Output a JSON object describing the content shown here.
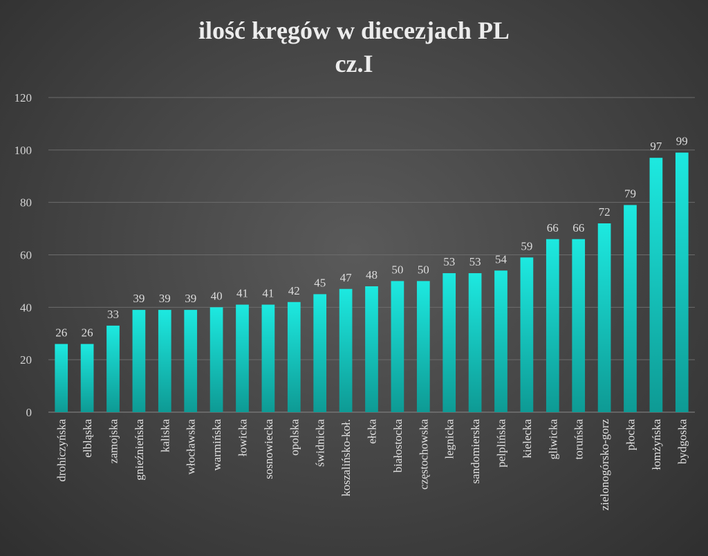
{
  "chart_data": {
    "type": "bar",
    "title_line1": "ilość kręgów w diecezjach PL",
    "title_line2": "cz.I",
    "xlabel": "",
    "ylabel": "",
    "ylim": [
      0,
      120
    ],
    "yticks": [
      0,
      20,
      40,
      60,
      80,
      100,
      120
    ],
    "grid": true,
    "legend": "none",
    "bar_color_top": "#1de9e0",
    "bar_color_bottom": "#0e9a94",
    "categories": [
      "drohiczyńska",
      "elbląska",
      "zamojska",
      "gnieźnieńska",
      "kaliska",
      "włocławska",
      "warmińska",
      "łowicka",
      "sosnowiecka",
      "opolska",
      "świdnicka",
      "koszalińsko-koł.",
      "ełcka",
      "białostocka",
      "częstochowska",
      "legnicka",
      "sandomierska",
      "pelplińska",
      "kielecka",
      "gliwicka",
      "toruńska",
      "zielonogórsko-gorz",
      "płocka",
      "łomżyńska",
      "bydgoska"
    ],
    "values": [
      26,
      26,
      33,
      39,
      39,
      39,
      40,
      41,
      41,
      42,
      45,
      47,
      48,
      50,
      50,
      53,
      53,
      54,
      59,
      66,
      66,
      72,
      79,
      97,
      99
    ]
  }
}
